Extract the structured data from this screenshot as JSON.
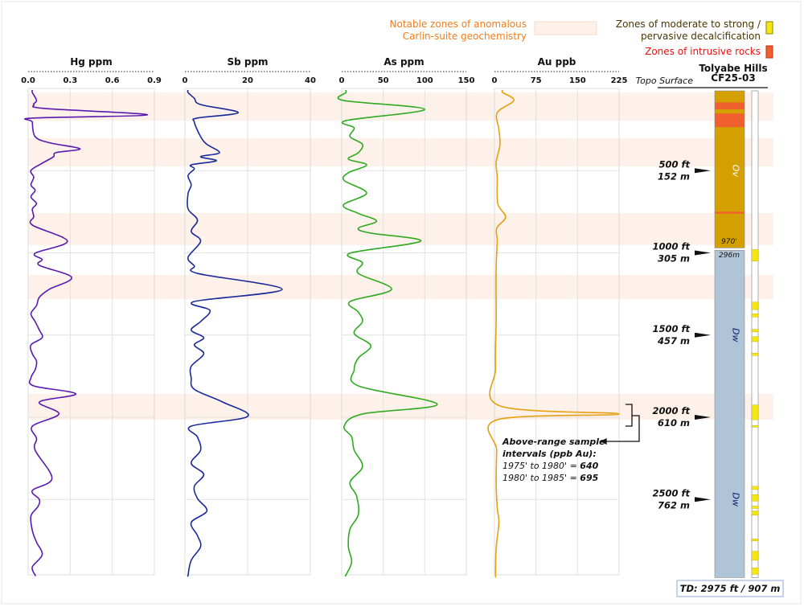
{
  "legend": {
    "anomaly_line1": "Notable zones of anomalous",
    "anomaly_line2": "Carlin-suite geochemistry",
    "decal_line1": "Zones of moderate to strong /",
    "decal_line2": "pervasive decalcification",
    "intrusive": "Zones of intrusive rocks",
    "colors": {
      "anomaly": "#fdf1ea",
      "anomaly_text": "#f07d1e",
      "decal": "#f5e812",
      "decal_text": "#4a3500",
      "intrusive": "#f0602e",
      "intrusive_text": "#f01010"
    }
  },
  "hole": {
    "name": "Tolyabe Hills",
    "id": "CF25-03",
    "topo_label": "Topo Surface",
    "td_label": "TD: 2975 ft / 907 m",
    "contact_ft": "970'",
    "contact_m": "296m",
    "depth_markers": [
      {
        "depth": 500,
        "ft": "500 ft",
        "m": "152 m"
      },
      {
        "depth": 1000,
        "ft": "1000 ft",
        "m": "305 m"
      },
      {
        "depth": 1500,
        "ft": "1500 ft",
        "m": "457 m"
      },
      {
        "depth": 2000,
        "ft": "2000 ft",
        "m": "610 m"
      },
      {
        "depth": 2500,
        "ft": "2500 ft",
        "m": "762 m"
      }
    ],
    "units": [
      {
        "label": "Ov",
        "from": 0,
        "to": 970,
        "color": "#d4a000"
      },
      {
        "label": "Dw",
        "from": 970,
        "to": 2975,
        "color": "#b0c4d8",
        "label_positions": [
          1500,
          2500
        ]
      }
    ],
    "intrusive_intervals": [
      [
        85,
        127
      ],
      [
        152,
        235
      ],
      [
        750,
        762
      ]
    ],
    "decalcification_intervals": [
      [
        980,
        1050
      ],
      [
        1300,
        1345
      ],
      [
        1370,
        1390
      ],
      [
        1465,
        1480
      ],
      [
        1510,
        1540
      ],
      [
        1610,
        1625
      ],
      [
        1925,
        2015
      ],
      [
        2050,
        2060
      ],
      [
        2420,
        2440
      ],
      [
        2470,
        2510
      ],
      [
        2540,
        2555
      ],
      [
        2570,
        2595
      ],
      [
        2740,
        2752
      ],
      [
        2815,
        2870
      ],
      [
        2915,
        2955
      ]
    ]
  },
  "annotation": {
    "line1": "Above-range sample",
    "line2": "intervals (ppb Au):",
    "row1_text": "1975' to 1980' = ",
    "row1_value": "640",
    "row2_text": "1980' to 1985' = ",
    "row2_value": "695"
  },
  "chart_data": {
    "type": "line",
    "y_axis": "depth (ft)",
    "ylim": [
      0,
      2975
    ],
    "anomaly_zones": [
      [
        25,
        196
      ],
      [
        303,
        474
      ],
      [
        758,
        953
      ],
      [
        1134,
        1281
      ],
      [
        1858,
        2015
      ]
    ],
    "grid": true,
    "panels": [
      {
        "title": "Hg ppm",
        "xlim": [
          0,
          0.9
        ],
        "ticks": [
          "0.0",
          "0.3",
          "0.6",
          "0.9"
        ],
        "color": "#5a18b0",
        "depth": [
          25,
          73,
          100,
          122,
          161,
          180,
          205,
          293,
          330,
          367,
          390,
          416,
          455,
          499,
          540,
          587,
          620,
          660,
          700,
          733,
          780,
          831,
          929,
          1002,
          1040,
          1076,
          1149,
          1222,
          1270,
          1320,
          1370,
          1418,
          1470,
          1516,
          1560,
          1614,
          1660,
          1711,
          1760,
          1809,
          1858,
          1907,
          1980,
          2054,
          2130,
          2200,
          2372,
          2445,
          2500,
          2543,
          2600,
          2689,
          2760,
          2836,
          2910,
          2960
        ],
        "values": [
          0.03,
          0.06,
          0.04,
          0.12,
          0.85,
          0.04,
          0.03,
          0.05,
          0.15,
          0.37,
          0.2,
          0.18,
          0.1,
          0.02,
          0.04,
          0.02,
          0.05,
          0.02,
          0.06,
          0.03,
          0.04,
          0.03,
          0.28,
          0.05,
          0.1,
          0.08,
          0.31,
          0.15,
          0.08,
          0.06,
          0.02,
          0.05,
          0.08,
          0.1,
          0.02,
          0.03,
          0.06,
          0.05,
          0.02,
          0.04,
          0.34,
          0.08,
          0.22,
          0.03,
          0.06,
          0.05,
          0.17,
          0.03,
          0.08,
          0.07,
          0.02,
          0.03,
          0.06,
          0.1,
          0.03,
          0.05
        ]
      },
      {
        "title": "Sb ppm",
        "xlim": [
          0,
          40
        ],
        "ticks": [
          "0",
          "20",
          "40"
        ],
        "color": "#1a2a9a",
        "depth": [
          25,
          60,
          98,
          147,
          180,
          205,
          293,
          340,
          391,
          415,
          440,
          465,
          489,
          530,
          587,
          640,
          733,
          800,
          870,
          929,
          1027,
          1080,
          1125,
          1222,
          1296,
          1350,
          1418,
          1470,
          1516,
          1560,
          1614,
          1690,
          1760,
          1830,
          1907,
          1995,
          2054,
          2120,
          2200,
          2280,
          2347,
          2420,
          2494,
          2570,
          2640,
          2720,
          2787,
          2870,
          2960
        ],
        "values": [
          1,
          3,
          5,
          17,
          4,
          3,
          5,
          7,
          11,
          5,
          10,
          2,
          3,
          1,
          2,
          1,
          1,
          4,
          2,
          5,
          1,
          3,
          4,
          31,
          3,
          8,
          5,
          2,
          6,
          3,
          6,
          2,
          2,
          3,
          12,
          20,
          2,
          4,
          5,
          2,
          6,
          3,
          4,
          7,
          2,
          4,
          5,
          2,
          1
        ]
      },
      {
        "title": "As ppm",
        "xlim": [
          0,
          150
        ],
        "ticks": [
          "0",
          "50",
          "100",
          "150"
        ],
        "color": "#2eaa1e",
        "depth": [
          25,
          73,
          127,
          196,
          240,
          293,
          340,
          391,
          430,
          465,
          513,
          560,
          636,
          709,
          760,
          807,
          850,
          880,
          929,
          1002,
          1060,
          1125,
          1222,
          1296,
          1360,
          1418,
          1490,
          1565,
          1640,
          1711,
          1809,
          1921,
          1980,
          2054,
          2120,
          2200,
          2300,
          2396,
          2480,
          2592,
          2680,
          2787,
          2880,
          2960
        ],
        "values": [
          5,
          2,
          100,
          5,
          15,
          10,
          25,
          20,
          8,
          30,
          8,
          3,
          30,
          2,
          20,
          42,
          20,
          35,
          95,
          10,
          25,
          20,
          60,
          10,
          20,
          25,
          15,
          35,
          20,
          15,
          20,
          115,
          25,
          3,
          12,
          15,
          25,
          10,
          18,
          20,
          10,
          8,
          12,
          5
        ]
      },
      {
        "title": "Au ppb",
        "xlim": [
          0,
          225
        ],
        "ticks": [
          "0",
          "75",
          "150",
          "225"
        ],
        "color": "#e6a010",
        "depth": [
          25,
          73,
          147,
          250,
          342,
          450,
          538,
          700,
          782,
          850,
          929,
          1100,
          1418,
          1700,
          1931,
          1980,
          2015,
          2200,
          2396,
          2550,
          2640,
          2800,
          2960
        ],
        "values": [
          15,
          35,
          5,
          8,
          10,
          3,
          5,
          6,
          20,
          4,
          5,
          3,
          3,
          2,
          10,
          225,
          5,
          4,
          3,
          5,
          8,
          3,
          2
        ]
      }
    ]
  }
}
